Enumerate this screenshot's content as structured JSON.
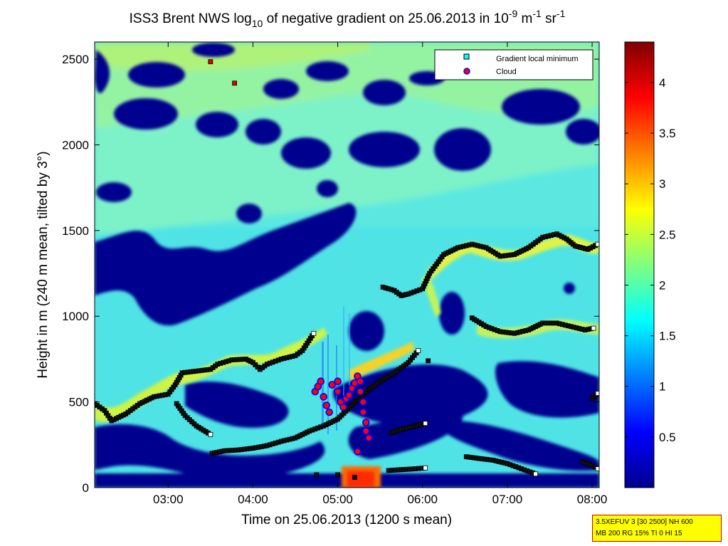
{
  "chart_data": {
    "type": "heatmap",
    "title_main": "ISS3 Brent NWS log",
    "title_sub": "10",
    "title_mid": " of negative gradient on 25.06.2013 in 10",
    "title_sup1": "-9",
    "title_mid2": " m",
    "title_sup2": "-1",
    "title_mid3": " sr",
    "title_sup3": "-1",
    "xlabel": "Time on 25.06.2013 (1200 s mean)",
    "ylabel": "Height in m (240 m mean, tilted by 3°)",
    "x_ticks": [
      "03:00",
      "04:00",
      "05:00",
      "06:00",
      "07:00",
      "08:00"
    ],
    "x_tick_minutes": [
      180,
      240,
      300,
      360,
      420,
      480
    ],
    "xlim_minutes": [
      128,
      485
    ],
    "y_ticks": [
      "0",
      "500",
      "1000",
      "1500",
      "2000",
      "2500"
    ],
    "y_tick_values": [
      0,
      500,
      1000,
      1500,
      2000,
      2500
    ],
    "ylim": [
      0,
      2600
    ],
    "colorbar": {
      "ticks": [
        "0.5",
        "1",
        "1.5",
        "2",
        "2.5",
        "3",
        "3.5",
        "4"
      ],
      "tick_values": [
        0.5,
        1,
        1.5,
        2,
        2.5,
        3,
        3.5,
        4
      ],
      "range": [
        0,
        4.4
      ],
      "colormap": "jet"
    },
    "legend": {
      "placement": "top-right",
      "entries": [
        {
          "label": "Gradient local minimum",
          "marker": "square",
          "color": "#00ffff"
        },
        {
          "label": "Cloud",
          "marker": "circle",
          "color": "#ff0000",
          "edge": "#0000ff"
        }
      ]
    },
    "gradient_minimum_layers": [
      {
        "name": "layer-a",
        "points": [
          [
            128,
            490
          ],
          [
            135,
            450
          ],
          [
            140,
            390
          ],
          [
            150,
            430
          ],
          [
            160,
            490
          ],
          [
            170,
            530
          ],
          [
            180,
            545
          ],
          [
            185,
            600
          ],
          [
            190,
            670
          ],
          [
            200,
            680
          ],
          [
            210,
            690
          ],
          [
            215,
            720
          ],
          [
            225,
            745
          ],
          [
            235,
            750
          ],
          [
            240,
            730
          ],
          [
            245,
            690
          ],
          [
            250,
            720
          ],
          [
            260,
            750
          ],
          [
            270,
            770
          ],
          [
            275,
            800
          ],
          [
            283,
            900
          ]
        ]
      },
      {
        "name": "layer-b",
        "points": [
          [
            186,
            490
          ],
          [
            192,
            420
          ],
          [
            200,
            360
          ],
          [
            210,
            310
          ]
        ]
      },
      {
        "name": "layer-c",
        "points": [
          [
            211,
            200
          ],
          [
            220,
            215
          ],
          [
            230,
            220
          ],
          [
            240,
            230
          ],
          [
            250,
            245
          ],
          [
            260,
            270
          ],
          [
            270,
            290
          ],
          [
            280,
            330
          ],
          [
            290,
            360
          ],
          [
            300,
            400
          ],
          [
            310,
            480
          ],
          [
            320,
            560
          ],
          [
            330,
            620
          ],
          [
            340,
            670
          ],
          [
            350,
            730
          ],
          [
            357,
            800
          ]
        ]
      },
      {
        "name": "layer-d",
        "points": [
          [
            332,
            1170
          ],
          [
            340,
            1150
          ],
          [
            345,
            1120
          ],
          [
            350,
            1130
          ],
          [
            360,
            1160
          ],
          [
            365,
            1250
          ],
          [
            375,
            1360
          ],
          [
            385,
            1400
          ],
          [
            395,
            1420
          ],
          [
            405,
            1400
          ],
          [
            415,
            1350
          ],
          [
            425,
            1360
          ],
          [
            435,
            1400
          ],
          [
            445,
            1460
          ],
          [
            455,
            1480
          ],
          [
            462,
            1450
          ],
          [
            468,
            1410
          ],
          [
            477,
            1390
          ],
          [
            484,
            1420
          ]
        ]
      },
      {
        "name": "layer-e",
        "points": [
          [
            395,
            990
          ],
          [
            405,
            940
          ],
          [
            415,
            910
          ],
          [
            425,
            900
          ],
          [
            435,
            920
          ],
          [
            445,
            960
          ],
          [
            455,
            960
          ],
          [
            465,
            940
          ],
          [
            475,
            920
          ],
          [
            481,
            930
          ]
        ]
      },
      {
        "name": "layer-f",
        "points": [
          [
            338,
            320
          ],
          [
            345,
            340
          ],
          [
            355,
            360
          ],
          [
            362,
            375
          ]
        ]
      },
      {
        "name": "layer-g",
        "points": [
          [
            336,
            100
          ],
          [
            345,
            105
          ],
          [
            355,
            110
          ],
          [
            362,
            115
          ]
        ]
      },
      {
        "name": "layer-h",
        "points": [
          [
            391,
            180
          ],
          [
            400,
            170
          ],
          [
            410,
            160
          ],
          [
            420,
            140
          ],
          [
            430,
            110
          ],
          [
            440,
            80
          ]
        ]
      },
      {
        "name": "layer-i",
        "points": [
          [
            473,
            150
          ],
          [
            480,
            130
          ],
          [
            484,
            110
          ]
        ]
      },
      {
        "name": "layer-j",
        "points": [
          [
            480,
            520
          ],
          [
            484,
            550
          ]
        ]
      }
    ],
    "clouds": [
      [
        284,
        560
      ],
      [
        286,
        590
      ],
      [
        288,
        620
      ],
      [
        290,
        530
      ],
      [
        292,
        480
      ],
      [
        294,
        440
      ],
      [
        296,
        600
      ],
      [
        300,
        560
      ],
      [
        300,
        620
      ],
      [
        302,
        500
      ],
      [
        304,
        470
      ],
      [
        306,
        520
      ],
      [
        308,
        540
      ],
      [
        310,
        580
      ],
      [
        312,
        610
      ],
      [
        314,
        650
      ],
      [
        316,
        620
      ],
      [
        316,
        560
      ],
      [
        318,
        500
      ],
      [
        318,
        440
      ],
      [
        320,
        380
      ],
      [
        320,
        330
      ],
      [
        322,
        290
      ],
      [
        314,
        210
      ]
    ],
    "isolated_points": [
      [
        210,
        2485
      ],
      [
        227,
        2360
      ],
      [
        364,
        740
      ],
      [
        285,
        75
      ],
      [
        300,
        75
      ],
      [
        312,
        60
      ]
    ]
  },
  "info_box": {
    "line1": "3.5XEFUV 3 [30 2500] NH 600",
    "line2": "MB 200 RG 15% TI 0 HI 15"
  }
}
